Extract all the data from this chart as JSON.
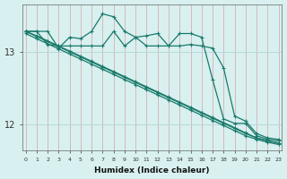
{
  "background_color": "#d8f0f0",
  "grid_color": "#b8d8d8",
  "line_color": "#1a7a6a",
  "xlabel": "Humidex (Indice chaleur)",
  "x_ticks": [
    0,
    1,
    2,
    3,
    4,
    5,
    6,
    7,
    8,
    9,
    10,
    11,
    12,
    13,
    14,
    15,
    16,
    17,
    18,
    19,
    20,
    21,
    22,
    23
  ],
  "y_ticks": [
    12,
    13
  ],
  "ylim": [
    11.65,
    13.65
  ],
  "xlim": [
    -0.3,
    23.3
  ],
  "series": [
    {
      "x": [
        0,
        1,
        2,
        3,
        4,
        5,
        6,
        7,
        8,
        9,
        10,
        11,
        12,
        13,
        14,
        15,
        16,
        17,
        18,
        19,
        20,
        21,
        22,
        23
      ],
      "y": [
        13.28,
        13.28,
        13.28,
        13.05,
        13.2,
        13.18,
        13.28,
        13.52,
        13.48,
        13.28,
        13.2,
        13.08,
        13.08,
        13.08,
        13.25,
        13.25,
        13.2,
        12.62,
        12.08,
        12.02,
        12.02,
        11.85,
        11.8,
        11.78
      ]
    },
    {
      "x": [
        0,
        1,
        2,
        3,
        4,
        5,
        6,
        7,
        8,
        9,
        10,
        11,
        12,
        13,
        14,
        15,
        16,
        17,
        18,
        19,
        20,
        21,
        22,
        23
      ],
      "y": [
        13.28,
        13.28,
        13.1,
        13.08,
        13.08,
        13.08,
        13.08,
        13.08,
        13.28,
        13.08,
        13.2,
        13.22,
        13.25,
        13.08,
        13.08,
        13.1,
        13.08,
        13.05,
        12.78,
        12.12,
        12.05,
        11.88,
        11.82,
        11.8
      ]
    },
    {
      "x": [
        0,
        1,
        2,
        3,
        4,
        5,
        6,
        7,
        8,
        9,
        10,
        11,
        12,
        13,
        14,
        15,
        16,
        17,
        18,
        19,
        20,
        21,
        22,
        23
      ],
      "y": [
        13.28,
        13.22,
        13.15,
        13.08,
        13.01,
        12.94,
        12.87,
        12.8,
        12.73,
        12.66,
        12.59,
        12.52,
        12.45,
        12.38,
        12.31,
        12.24,
        12.17,
        12.1,
        12.03,
        11.96,
        11.89,
        11.82,
        11.78,
        11.75
      ]
    },
    {
      "x": [
        0,
        1,
        2,
        3,
        4,
        5,
        6,
        7,
        8,
        9,
        10,
        11,
        12,
        13,
        14,
        15,
        16,
        17,
        18,
        19,
        20,
        21,
        22,
        23
      ],
      "y": [
        13.28,
        13.21,
        13.14,
        13.07,
        13.0,
        12.93,
        12.86,
        12.79,
        12.72,
        12.65,
        12.58,
        12.51,
        12.44,
        12.37,
        12.3,
        12.23,
        12.16,
        12.09,
        12.02,
        11.95,
        11.88,
        11.82,
        11.78,
        11.75
      ]
    },
    {
      "x": [
        0,
        1,
        2,
        3,
        4,
        5,
        6,
        7,
        8,
        9,
        10,
        11,
        12,
        13,
        14,
        15,
        16,
        17,
        18,
        19,
        20,
        21,
        22,
        23
      ],
      "y": [
        13.25,
        13.18,
        13.11,
        13.04,
        12.97,
        12.9,
        12.83,
        12.76,
        12.69,
        12.62,
        12.55,
        12.48,
        12.41,
        12.34,
        12.27,
        12.2,
        12.13,
        12.06,
        11.99,
        11.92,
        11.85,
        11.8,
        11.76,
        11.73
      ]
    }
  ]
}
